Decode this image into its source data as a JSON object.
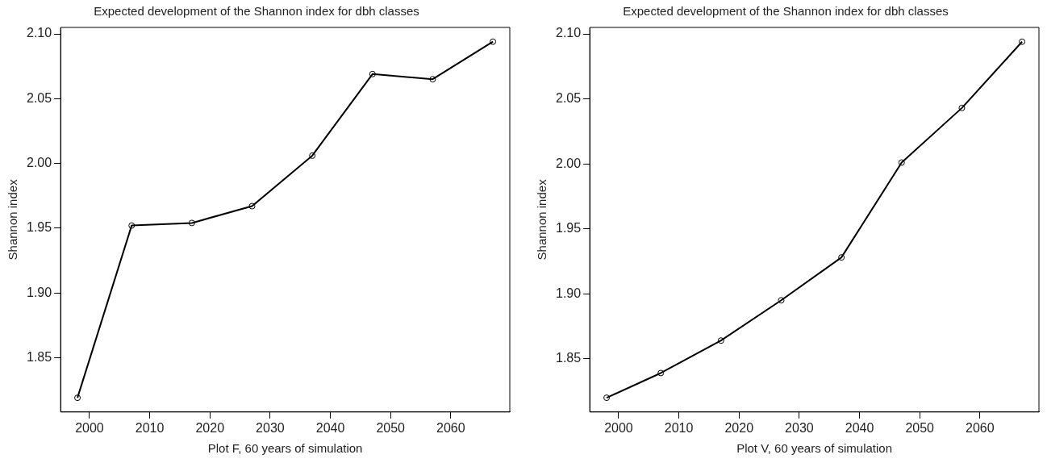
{
  "chart_data": [
    {
      "type": "line",
      "title": "Expected development of the Shannon index for dbh classes",
      "xlabel": "Plot F, 60 years of simulation",
      "ylabel": "Shannon index",
      "x": [
        1998,
        2007,
        2017,
        2027,
        2037,
        2047,
        2057,
        2067
      ],
      "series": [
        {
          "color": "#000000",
          "values": [
            1.819,
            1.952,
            1.954,
            1.967,
            2.006,
            2.069,
            2.065,
            2.094
          ]
        }
      ],
      "xlim": [
        1995.2,
        2069.8
      ],
      "xticks": [
        2000,
        2010,
        2020,
        2030,
        2040,
        2050,
        2060
      ],
      "ylim": [
        1.808,
        2.105
      ],
      "yticks": [
        1.85,
        {
          "value": 1.9,
          "label": "1.90"
        },
        1.95,
        {
          "value": 2.0,
          "label": "2.00"
        },
        2.05,
        {
          "value": 2.1,
          "label": "2.10"
        }
      ],
      "grid": false,
      "legend": false,
      "marker": "circle",
      "line_style": "solid"
    },
    {
      "type": "line",
      "title": "Expected development of the Shannon index for dbh classes",
      "xlabel": "Plot V, 60 years of simulation",
      "ylabel": "Shannon index",
      "x": [
        1998,
        2007,
        2017,
        2027,
        2037,
        2047,
        2057,
        2067
      ],
      "series": [
        {
          "color": "#000000",
          "values": [
            1.82,
            1.839,
            1.864,
            1.895,
            1.928,
            2.001,
            2.043,
            2.094
          ]
        }
      ],
      "xlim": [
        1995.2,
        2069.8
      ],
      "xticks": [
        2000,
        2010,
        2020,
        2030,
        2040,
        2050,
        2060
      ],
      "ylim": [
        1.809,
        2.105
      ],
      "yticks": [
        1.85,
        {
          "value": 1.9,
          "label": "1.90"
        },
        1.95,
        {
          "value": 2.0,
          "label": "2.00"
        },
        2.05,
        {
          "value": 2.1,
          "label": "2.10"
        }
      ],
      "grid": false,
      "legend": false,
      "marker": "circle",
      "line_style": "solid"
    }
  ]
}
